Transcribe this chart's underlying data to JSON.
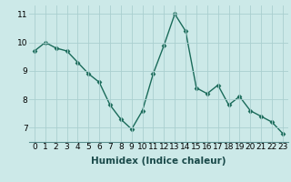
{
  "x": [
    0,
    1,
    2,
    3,
    4,
    5,
    6,
    7,
    8,
    9,
    10,
    11,
    12,
    13,
    14,
    15,
    16,
    17,
    18,
    19,
    20,
    21,
    22,
    23
  ],
  "y": [
    9.7,
    10.0,
    9.8,
    9.7,
    9.3,
    8.9,
    8.6,
    7.8,
    7.3,
    6.95,
    7.6,
    8.9,
    9.9,
    11.0,
    10.4,
    8.4,
    8.2,
    8.5,
    7.8,
    8.1,
    7.6,
    7.4,
    7.2,
    6.8
  ],
  "line_color": "#1a6b5a",
  "marker": "D",
  "markersize": 2.5,
  "linewidth": 1.0,
  "xlabel": "Humidex (Indice chaleur)",
  "background_color": "#cce9e8",
  "grid_color": "#aacfcf",
  "ylim": [
    6.5,
    11.3
  ],
  "xlim": [
    -0.5,
    23.5
  ],
  "yticks": [
    7,
    8,
    9,
    10,
    11
  ],
  "xticks": [
    0,
    1,
    2,
    3,
    4,
    5,
    6,
    7,
    8,
    9,
    10,
    11,
    12,
    13,
    14,
    15,
    16,
    17,
    18,
    19,
    20,
    21,
    22,
    23
  ],
  "tick_fontsize": 6.5,
  "xlabel_fontsize": 7.5
}
